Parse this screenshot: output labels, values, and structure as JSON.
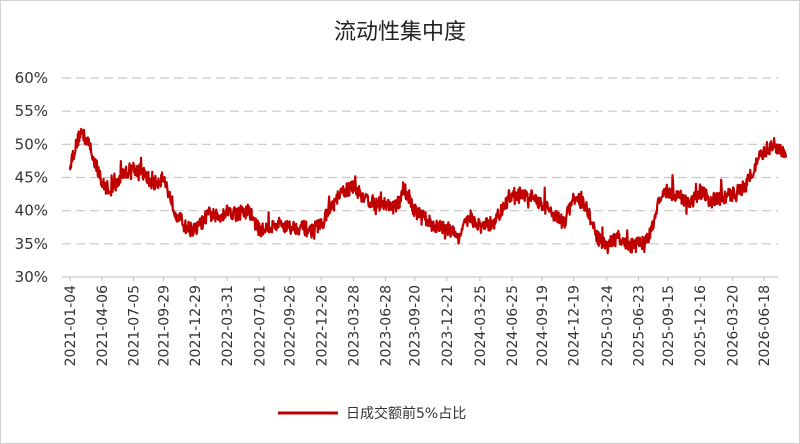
{
  "chart_data": {
    "type": "line",
    "title": "流动性集中度",
    "xlabel": "",
    "ylabel": "",
    "ylim": [
      0.3,
      0.6
    ],
    "y_ticks": [
      "30%",
      "35%",
      "40%",
      "45%",
      "50%",
      "55%",
      "60%"
    ],
    "y_tick_values": [
      0.3,
      0.35,
      0.4,
      0.45,
      0.5,
      0.55,
      0.6
    ],
    "x_tick_labels": [
      "2021-01-04",
      "2021-04-06",
      "2021-07-05",
      "2021-09-29",
      "2021-12-29",
      "2022-03-31",
      "2022-07-01",
      "2022-09-26",
      "2022-12-26",
      "2023-03-28",
      "2023-06-28",
      "2023-09-20",
      "2023-12-21",
      "2024-03-25",
      "2024-06-25",
      "2024-09-19",
      "2024-12-19",
      "2025-03-24",
      "2025-06-23",
      "2025-09-15",
      "2025-12-16",
      "2026-03-20",
      "2026-06-18"
    ],
    "grid": "horizontal-dashed",
    "legend": "bottom-center",
    "series": [
      {
        "name": "日成交额前5%占比",
        "color": "#c00000",
        "x": [
          "2021-01-04",
          "2021-02-04",
          "2021-03-04",
          "2021-04-06",
          "2021-05-06",
          "2021-06-04",
          "2021-07-05",
          "2021-08-04",
          "2021-09-01",
          "2021-09-29",
          "2021-11-01",
          "2021-12-01",
          "2021-12-29",
          "2022-02-07",
          "2022-03-04",
          "2022-03-31",
          "2022-05-05",
          "2022-06-02",
          "2022-07-01",
          "2022-08-01",
          "2022-08-31",
          "2022-09-26",
          "2022-10-31",
          "2022-11-28",
          "2022-12-26",
          "2023-01-30",
          "2023-02-28",
          "2023-03-28",
          "2023-04-27",
          "2023-05-30",
          "2023-06-28",
          "2023-07-27",
          "2023-08-24",
          "2023-09-20",
          "2023-10-26",
          "2023-11-23",
          "2023-12-21",
          "2024-01-22",
          "2024-02-26",
          "2024-03-25",
          "2024-04-24",
          "2024-05-28",
          "2024-06-25",
          "2024-07-24",
          "2024-08-21",
          "2024-09-19",
          "2024-10-24",
          "2024-11-21",
          "2024-12-19",
          "2025-01-20",
          "2025-02-24",
          "2025-03-24",
          "2025-04-23",
          "2025-05-26",
          "2025-06-23",
          "2025-07-21",
          "2025-08-18",
          "2025-09-15",
          "2025-10-22",
          "2025-11-19",
          "2025-12-16",
          "2026-01-16",
          "2026-02-24",
          "2026-03-20",
          "2026-04-21",
          "2026-05-20",
          "2026-06-18",
          "2026-07-20",
          "2026-08-20"
        ],
        "values": [
          0.47,
          0.52,
          0.495,
          0.44,
          0.43,
          0.455,
          0.465,
          0.455,
          0.44,
          0.45,
          0.4,
          0.375,
          0.37,
          0.395,
          0.39,
          0.4,
          0.395,
          0.4,
          0.37,
          0.375,
          0.38,
          0.375,
          0.375,
          0.37,
          0.38,
          0.41,
          0.43,
          0.435,
          0.42,
          0.41,
          0.41,
          0.405,
          0.43,
          0.4,
          0.385,
          0.375,
          0.375,
          0.36,
          0.39,
          0.375,
          0.38,
          0.4,
          0.425,
          0.425,
          0.42,
          0.41,
          0.395,
          0.38,
          0.42,
          0.41,
          0.36,
          0.345,
          0.36,
          0.345,
          0.35,
          0.355,
          0.41,
          0.43,
          0.42,
          0.41,
          0.43,
          0.415,
          0.42,
          0.425,
          0.435,
          0.465,
          0.49,
          0.5,
          0.48
        ]
      }
    ]
  }
}
